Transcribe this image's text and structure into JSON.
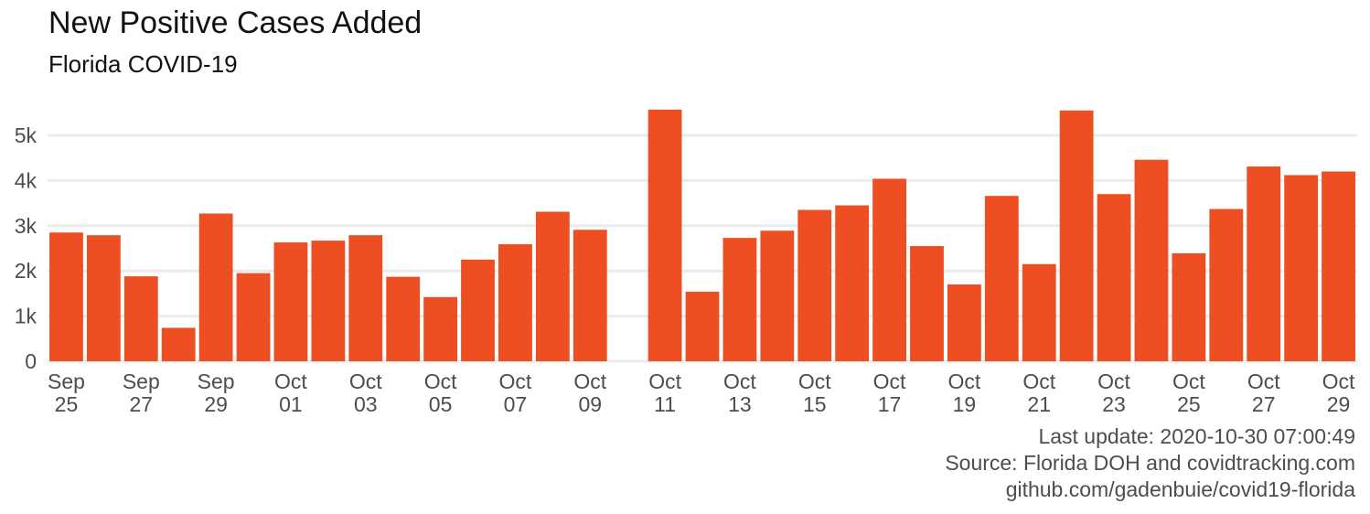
{
  "chart_data": {
    "type": "bar",
    "title": "New Positive Cases Added",
    "subtitle": "Florida COVID-19",
    "xlabel": "",
    "ylabel": "",
    "ylim": [
      0,
      5700
    ],
    "yticks": [
      0,
      1000,
      2000,
      3000,
      4000,
      5000
    ],
    "ytick_labels": [
      "0",
      "1k",
      "2k",
      "3k",
      "4k",
      "5k"
    ],
    "grid": true,
    "bar_color": "#ED4F22",
    "categories": [
      "2020-09-25",
      "2020-09-26",
      "2020-09-27",
      "2020-09-28",
      "2020-09-29",
      "2020-09-30",
      "2020-10-01",
      "2020-10-02",
      "2020-10-03",
      "2020-10-04",
      "2020-10-05",
      "2020-10-06",
      "2020-10-07",
      "2020-10-08",
      "2020-10-09",
      "2020-10-10",
      "2020-10-11",
      "2020-10-12",
      "2020-10-13",
      "2020-10-14",
      "2020-10-15",
      "2020-10-16",
      "2020-10-17",
      "2020-10-18",
      "2020-10-19",
      "2020-10-20",
      "2020-10-21",
      "2020-10-22",
      "2020-10-23",
      "2020-10-24",
      "2020-10-25",
      "2020-10-26",
      "2020-10-27",
      "2020-10-28",
      "2020-10-29"
    ],
    "values": [
      2850,
      2790,
      1880,
      740,
      3270,
      1950,
      2630,
      2670,
      2790,
      1870,
      1420,
      2250,
      2590,
      3310,
      2910,
      null,
      5570,
      1540,
      2730,
      2890,
      3350,
      3450,
      4040,
      2550,
      1700,
      3660,
      2150,
      5550,
      3700,
      4460,
      2390,
      3370,
      4310,
      4120,
      4200
    ],
    "xtick_labels": [
      {
        "month": "Sep",
        "day": "25",
        "index": 0
      },
      {
        "month": "Sep",
        "day": "27",
        "index": 2
      },
      {
        "month": "Sep",
        "day": "29",
        "index": 4
      },
      {
        "month": "Oct",
        "day": "01",
        "index": 6
      },
      {
        "month": "Oct",
        "day": "03",
        "index": 8
      },
      {
        "month": "Oct",
        "day": "05",
        "index": 10
      },
      {
        "month": "Oct",
        "day": "07",
        "index": 12
      },
      {
        "month": "Oct",
        "day": "09",
        "index": 14
      },
      {
        "month": "Oct",
        "day": "11",
        "index": 16
      },
      {
        "month": "Oct",
        "day": "13",
        "index": 18
      },
      {
        "month": "Oct",
        "day": "15",
        "index": 20
      },
      {
        "month": "Oct",
        "day": "17",
        "index": 22
      },
      {
        "month": "Oct",
        "day": "19",
        "index": 24
      },
      {
        "month": "Oct",
        "day": "21",
        "index": 26
      },
      {
        "month": "Oct",
        "day": "23",
        "index": 28
      },
      {
        "month": "Oct",
        "day": "25",
        "index": 30
      },
      {
        "month": "Oct",
        "day": "27",
        "index": 32
      },
      {
        "month": "Oct",
        "day": "29",
        "index": 34
      }
    ]
  },
  "caption": {
    "line1": "Last update: 2020-10-30 07:00:49",
    "line2": "Source: Florida DOH and covidtracking.com",
    "line3": "github.com/gadenbuie/covid19-florida"
  }
}
